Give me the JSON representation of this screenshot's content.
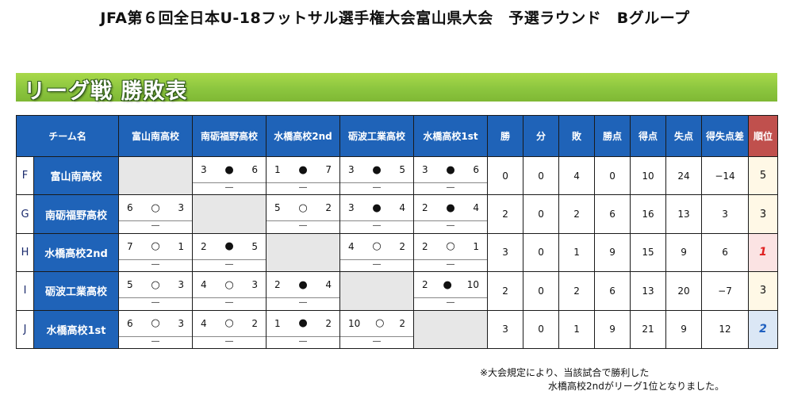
{
  "header": {
    "title": "JFA第６回全日本U-18フットサル選手権大会富山県大会　予選ラウンド　Bグループ",
    "section_title": "リーグ戦 勝敗表"
  },
  "table": {
    "columns": {
      "team": "チーム名",
      "opponents": [
        "富山南高校",
        "南砺福野高校",
        "水橋高校2nd",
        "砺波工業高校",
        "水橋高校1st"
      ],
      "win": "勝",
      "draw": "分",
      "loss": "敗",
      "points": "勝点",
      "goals_for": "得点",
      "goals_against": "失点",
      "goal_diff": "得失点差",
      "rank": "順位"
    },
    "rows": [
      {
        "letter": "F",
        "team": "富山南高校",
        "matches": [
          null,
          {
            "left": "3",
            "mark": "●",
            "right": "6",
            "note": "―"
          },
          {
            "left": "1",
            "mark": "●",
            "right": "7",
            "note": "―"
          },
          {
            "left": "3",
            "mark": "●",
            "right": "5",
            "note": "―"
          },
          {
            "left": "3",
            "mark": "●",
            "right": "6",
            "note": "―"
          }
        ],
        "win": "0",
        "draw": "0",
        "loss": "4",
        "points": "0",
        "gf": "10",
        "ga": "24",
        "gd": "−14",
        "rank": "5"
      },
      {
        "letter": "G",
        "team": "南砺福野高校",
        "matches": [
          {
            "left": "6",
            "mark": "○",
            "right": "3",
            "note": "―"
          },
          null,
          {
            "left": "5",
            "mark": "○",
            "right": "2",
            "note": "―"
          },
          {
            "left": "3",
            "mark": "●",
            "right": "4",
            "note": "―"
          },
          {
            "left": "2",
            "mark": "●",
            "right": "4",
            "note": "―"
          }
        ],
        "win": "2",
        "draw": "0",
        "loss": "2",
        "points": "6",
        "gf": "16",
        "ga": "13",
        "gd": "3",
        "rank": "3"
      },
      {
        "letter": "H",
        "team": "水橋高校2nd",
        "matches": [
          {
            "left": "7",
            "mark": "○",
            "right": "1",
            "note": "―"
          },
          {
            "left": "2",
            "mark": "●",
            "right": "5",
            "note": "―"
          },
          null,
          {
            "left": "4",
            "mark": "○",
            "right": "2",
            "note": "―"
          },
          {
            "left": "2",
            "mark": "○",
            "right": "1",
            "note": "―"
          }
        ],
        "win": "3",
        "draw": "0",
        "loss": "1",
        "points": "9",
        "gf": "15",
        "ga": "9",
        "gd": "6",
        "rank": "1"
      },
      {
        "letter": "I",
        "team": "砺波工業高校",
        "matches": [
          {
            "left": "5",
            "mark": "○",
            "right": "3",
            "note": "―"
          },
          {
            "left": "4",
            "mark": "○",
            "right": "3",
            "note": "―"
          },
          {
            "left": "2",
            "mark": "●",
            "right": "4",
            "note": "―"
          },
          null,
          {
            "left": "2",
            "mark": "●",
            "right": "10",
            "note": "―"
          }
        ],
        "win": "2",
        "draw": "0",
        "loss": "2",
        "points": "6",
        "gf": "13",
        "ga": "20",
        "gd": "−7",
        "rank": "3"
      },
      {
        "letter": "J",
        "team": "水橋高校1st",
        "matches": [
          {
            "left": "6",
            "mark": "○",
            "right": "3",
            "note": "―"
          },
          {
            "left": "4",
            "mark": "○",
            "right": "2",
            "note": "―"
          },
          {
            "left": "1",
            "mark": "●",
            "right": "2",
            "note": "―"
          },
          {
            "left": "10",
            "mark": "○",
            "right": "2",
            "note": "―"
          },
          null
        ],
        "win": "3",
        "draw": "0",
        "loss": "1",
        "points": "9",
        "gf": "21",
        "ga": "9",
        "gd": "12",
        "rank": "2"
      }
    ]
  },
  "footnote": {
    "line1": "※大会規定により、当該試合で勝利した",
    "line2": "水橋高校2ndがリーグ1位となりました。"
  },
  "colors": {
    "header_blue": "#1f63b8",
    "rank_header_red": "#c0504d",
    "band_green": "#8cc63f",
    "rank1_red": "#e02020",
    "rank2_blue": "#2060c0"
  }
}
